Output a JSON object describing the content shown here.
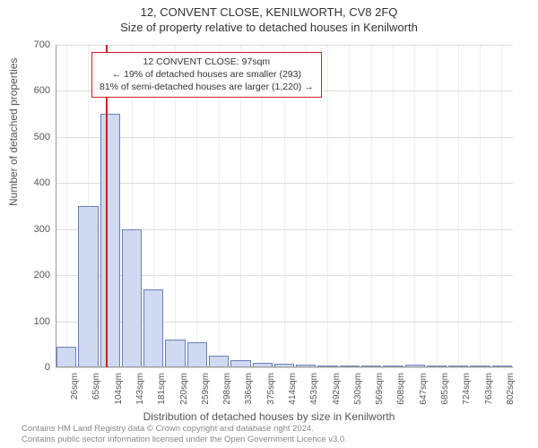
{
  "title_main": "12, CONVENT CLOSE, KENILWORTH, CV8 2FQ",
  "title_sub": "Size of property relative to detached houses in Kenilworth",
  "ylabel": "Number of detached properties",
  "xlabel": "Distribution of detached houses by size in Kenilworth",
  "footnote_l1": "Contains HM Land Registry data © Crown copyright and database right 2024.",
  "footnote_l2": "Contains public sector information licensed under the Open Government Licence v3.0.",
  "legend_l1": "12 CONVENT CLOSE: 97sqm",
  "legend_l2": "← 19% of detached houses are smaller (293)",
  "legend_l3": "81% of semi-detached houses are larger (1,220) →",
  "chart": {
    "type": "histogram",
    "ylim": [
      0,
      700
    ],
    "ytick_step": 100,
    "yticks": [
      0,
      100,
      200,
      300,
      400,
      500,
      600,
      700
    ],
    "background_color": "#ffffff",
    "grid_color_h": "#dddddd",
    "grid_color_v": "#eeeeee",
    "axis_color": "#999999",
    "bar_fill": "#cfd9f2",
    "bar_stroke": "#6a7fb8",
    "refline_color": "#d02020",
    "refline_x_sqm": 97,
    "x_start_sqm": 26,
    "x_step_sqm": 38.8,
    "xtick_labels": [
      "26sqm",
      "65sqm",
      "104sqm",
      "143sqm",
      "181sqm",
      "220sqm",
      "259sqm",
      "298sqm",
      "336sqm",
      "375sqm",
      "414sqm",
      "453sqm",
      "492sqm",
      "530sqm",
      "569sqm",
      "608sqm",
      "647sqm",
      "685sqm",
      "724sqm",
      "763sqm",
      "802sqm"
    ],
    "bar_values": [
      45,
      350,
      550,
      300,
      170,
      60,
      55,
      25,
      15,
      10,
      8,
      5,
      4,
      3,
      2,
      2,
      6,
      2,
      2,
      2,
      2
    ],
    "label_fontsize": 12,
    "tick_fontsize": 11
  }
}
